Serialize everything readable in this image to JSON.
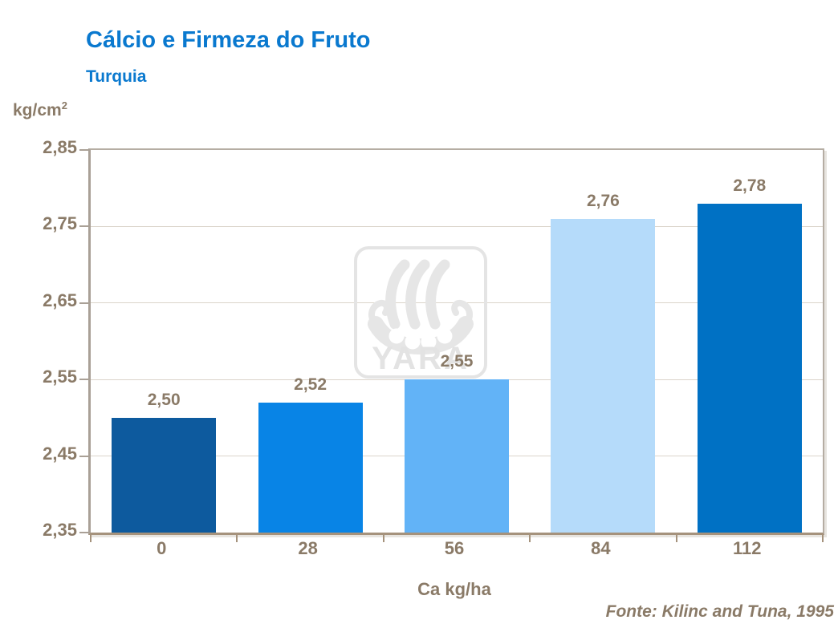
{
  "title": "Cálcio e Firmeza do Fruto",
  "subtitle": "Turquia",
  "y_unit": {
    "base": "kg/cm",
    "sup": "2"
  },
  "x_axis_label": "Ca kg/ha",
  "source": "Fonte: Kilinc and Tuna, 1995",
  "watermark": {
    "name": "yara-viking-ship-logo",
    "text": "YARA"
  },
  "colors": {
    "title_blue": "#0a79cf",
    "text_brown": "#8a7a67",
    "grid_color": "#dbd4ca",
    "axis_gray": "#a9a096",
    "axis_tan": "#a5927c",
    "watermark_gray": "#e4e4e4",
    "bar_colors": [
      "#0d5a9e",
      "#0884e6",
      "#62b3f7",
      "#b5dbfa",
      "#0071c4"
    ]
  },
  "chart_data": {
    "type": "bar",
    "title": "Cálcio e Firmeza do Fruto",
    "subtitle": "Turquia",
    "xlabel": "Ca kg/ha",
    "ylabel": "kg/cm2",
    "categories": [
      "0",
      "28",
      "56",
      "84",
      "112"
    ],
    "values": [
      2.5,
      2.52,
      2.55,
      2.76,
      2.78
    ],
    "value_labels": [
      "2,50",
      "2,52",
      "2,55",
      "2,76",
      "2,78"
    ],
    "ylim": [
      2.35,
      2.85
    ],
    "y_ticks": [
      2.35,
      2.45,
      2.55,
      2.65,
      2.75,
      2.85
    ],
    "y_tick_labels": [
      "2,35",
      "2,45",
      "2,55",
      "2,65",
      "2,75",
      "2,85"
    ],
    "grid": true,
    "legend": false,
    "source": "Fonte: Kilinc and Tuna, 1995"
  }
}
